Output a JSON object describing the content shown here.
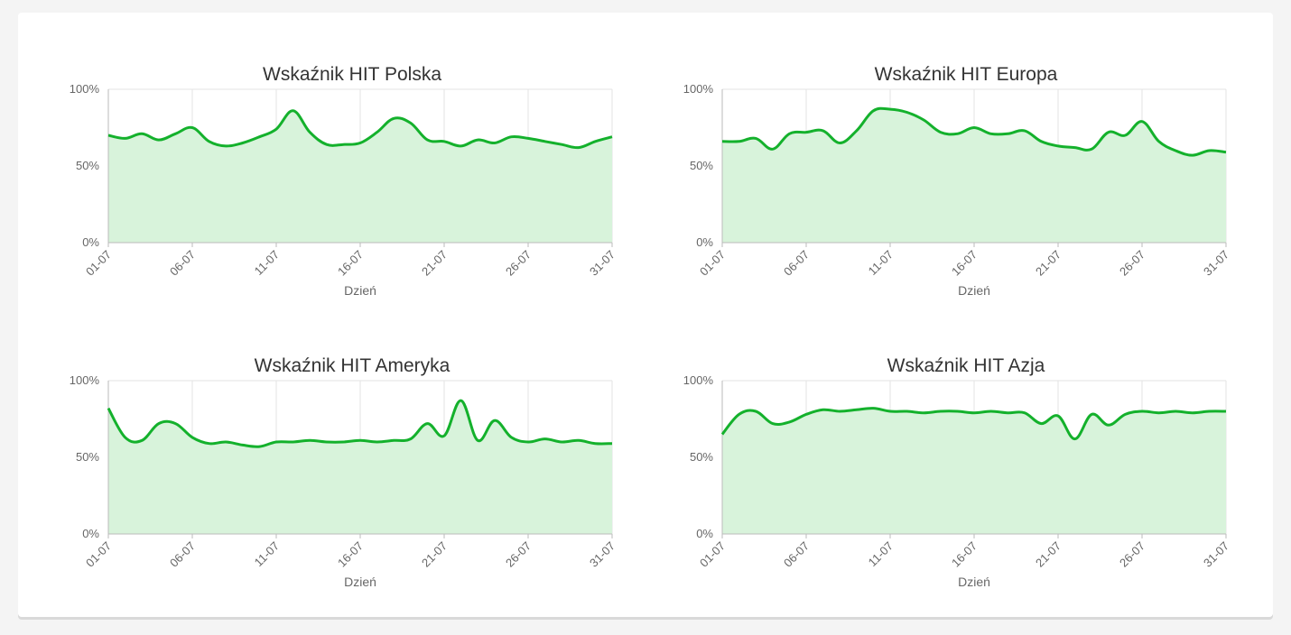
{
  "colors": {
    "line": "#14b12c",
    "area": "#d8f3db",
    "grid": "#e3e3e3",
    "axis": "#bbbbbb"
  },
  "chart_data": [
    {
      "type": "area",
      "title": "Wskaźnik HIT Polska",
      "xlabel": "Dzień",
      "ylabel": "",
      "ylim": [
        0,
        100
      ],
      "yticks": [
        "0%",
        "50%",
        "100%"
      ],
      "xtick_labels": [
        "01-07",
        "06-07",
        "11-07",
        "16-07",
        "21-07",
        "26-07",
        "31-07"
      ],
      "series": [
        {
          "x": [
            "01-07",
            "02-07",
            "03-07",
            "04-07",
            "05-07",
            "06-07",
            "07-07",
            "08-07",
            "09-07",
            "10-07",
            "11-07",
            "12-07",
            "13-07",
            "14-07",
            "15-07",
            "16-07",
            "17-07",
            "18-07",
            "19-07",
            "20-07",
            "21-07",
            "22-07",
            "23-07",
            "24-07",
            "25-07",
            "26-07",
            "27-07",
            "28-07",
            "29-07",
            "30-07",
            "31-07"
          ],
          "values": [
            70,
            68,
            71,
            67,
            71,
            75,
            66,
            63,
            65,
            69,
            74,
            86,
            72,
            64,
            64,
            65,
            72,
            81,
            78,
            67,
            66,
            63,
            67,
            65,
            69,
            68,
            66,
            64,
            62,
            66,
            69
          ]
        }
      ]
    },
    {
      "type": "area",
      "title": "Wskaźnik HIT Europa",
      "xlabel": "Dzień",
      "ylabel": "",
      "ylim": [
        0,
        100
      ],
      "yticks": [
        "0%",
        "50%",
        "100%"
      ],
      "xtick_labels": [
        "01-07",
        "06-07",
        "11-07",
        "16-07",
        "21-07",
        "26-07",
        "31-07"
      ],
      "series": [
        {
          "x": [
            "01-07",
            "02-07",
            "03-07",
            "04-07",
            "05-07",
            "06-07",
            "07-07",
            "08-07",
            "09-07",
            "10-07",
            "11-07",
            "12-07",
            "13-07",
            "14-07",
            "15-07",
            "16-07",
            "17-07",
            "18-07",
            "19-07",
            "20-07",
            "21-07",
            "22-07",
            "23-07",
            "24-07",
            "25-07",
            "26-07",
            "27-07",
            "28-07",
            "29-07",
            "30-07",
            "31-07"
          ],
          "values": [
            66,
            66,
            68,
            61,
            71,
            72,
            73,
            65,
            73,
            86,
            87,
            85,
            80,
            72,
            71,
            75,
            71,
            71,
            73,
            66,
            63,
            62,
            61,
            72,
            70,
            79,
            66,
            60,
            57,
            60,
            59
          ]
        }
      ]
    },
    {
      "type": "area",
      "title": "Wskaźnik HIT Ameryka",
      "xlabel": "Dzień",
      "ylabel": "",
      "ylim": [
        0,
        100
      ],
      "yticks": [
        "0%",
        "50%",
        "100%"
      ],
      "xtick_labels": [
        "01-07",
        "06-07",
        "11-07",
        "16-07",
        "21-07",
        "26-07",
        "31-07"
      ],
      "series": [
        {
          "x": [
            "01-07",
            "02-07",
            "03-07",
            "04-07",
            "05-07",
            "06-07",
            "07-07",
            "08-07",
            "09-07",
            "10-07",
            "11-07",
            "12-07",
            "13-07",
            "14-07",
            "15-07",
            "16-07",
            "17-07",
            "18-07",
            "19-07",
            "20-07",
            "21-07",
            "22-07",
            "23-07",
            "24-07",
            "25-07",
            "26-07",
            "27-07",
            "28-07",
            "29-07",
            "30-07",
            "31-07"
          ],
          "values": [
            82,
            63,
            61,
            72,
            72,
            63,
            59,
            60,
            58,
            57,
            60,
            60,
            61,
            60,
            60,
            61,
            60,
            61,
            62,
            72,
            64,
            87,
            61,
            74,
            63,
            60,
            62,
            60,
            61,
            59,
            59
          ]
        }
      ]
    },
    {
      "type": "area",
      "title": "Wskaźnik HIT Azja",
      "xlabel": "Dzień",
      "ylabel": "",
      "ylim": [
        0,
        100
      ],
      "yticks": [
        "0%",
        "50%",
        "100%"
      ],
      "xtick_labels": [
        "01-07",
        "06-07",
        "11-07",
        "16-07",
        "21-07",
        "26-07",
        "31-07"
      ],
      "series": [
        {
          "x": [
            "01-07",
            "02-07",
            "03-07",
            "04-07",
            "05-07",
            "06-07",
            "07-07",
            "08-07",
            "09-07",
            "10-07",
            "11-07",
            "12-07",
            "13-07",
            "14-07",
            "15-07",
            "16-07",
            "17-07",
            "18-07",
            "19-07",
            "20-07",
            "21-07",
            "22-07",
            "23-07",
            "24-07",
            "25-07",
            "26-07",
            "27-07",
            "28-07",
            "29-07",
            "30-07",
            "31-07"
          ],
          "values": [
            65,
            78,
            80,
            72,
            73,
            78,
            81,
            80,
            81,
            82,
            80,
            80,
            79,
            80,
            80,
            79,
            80,
            79,
            79,
            72,
            77,
            62,
            78,
            71,
            78,
            80,
            79,
            80,
            79,
            80,
            80
          ]
        }
      ]
    }
  ]
}
